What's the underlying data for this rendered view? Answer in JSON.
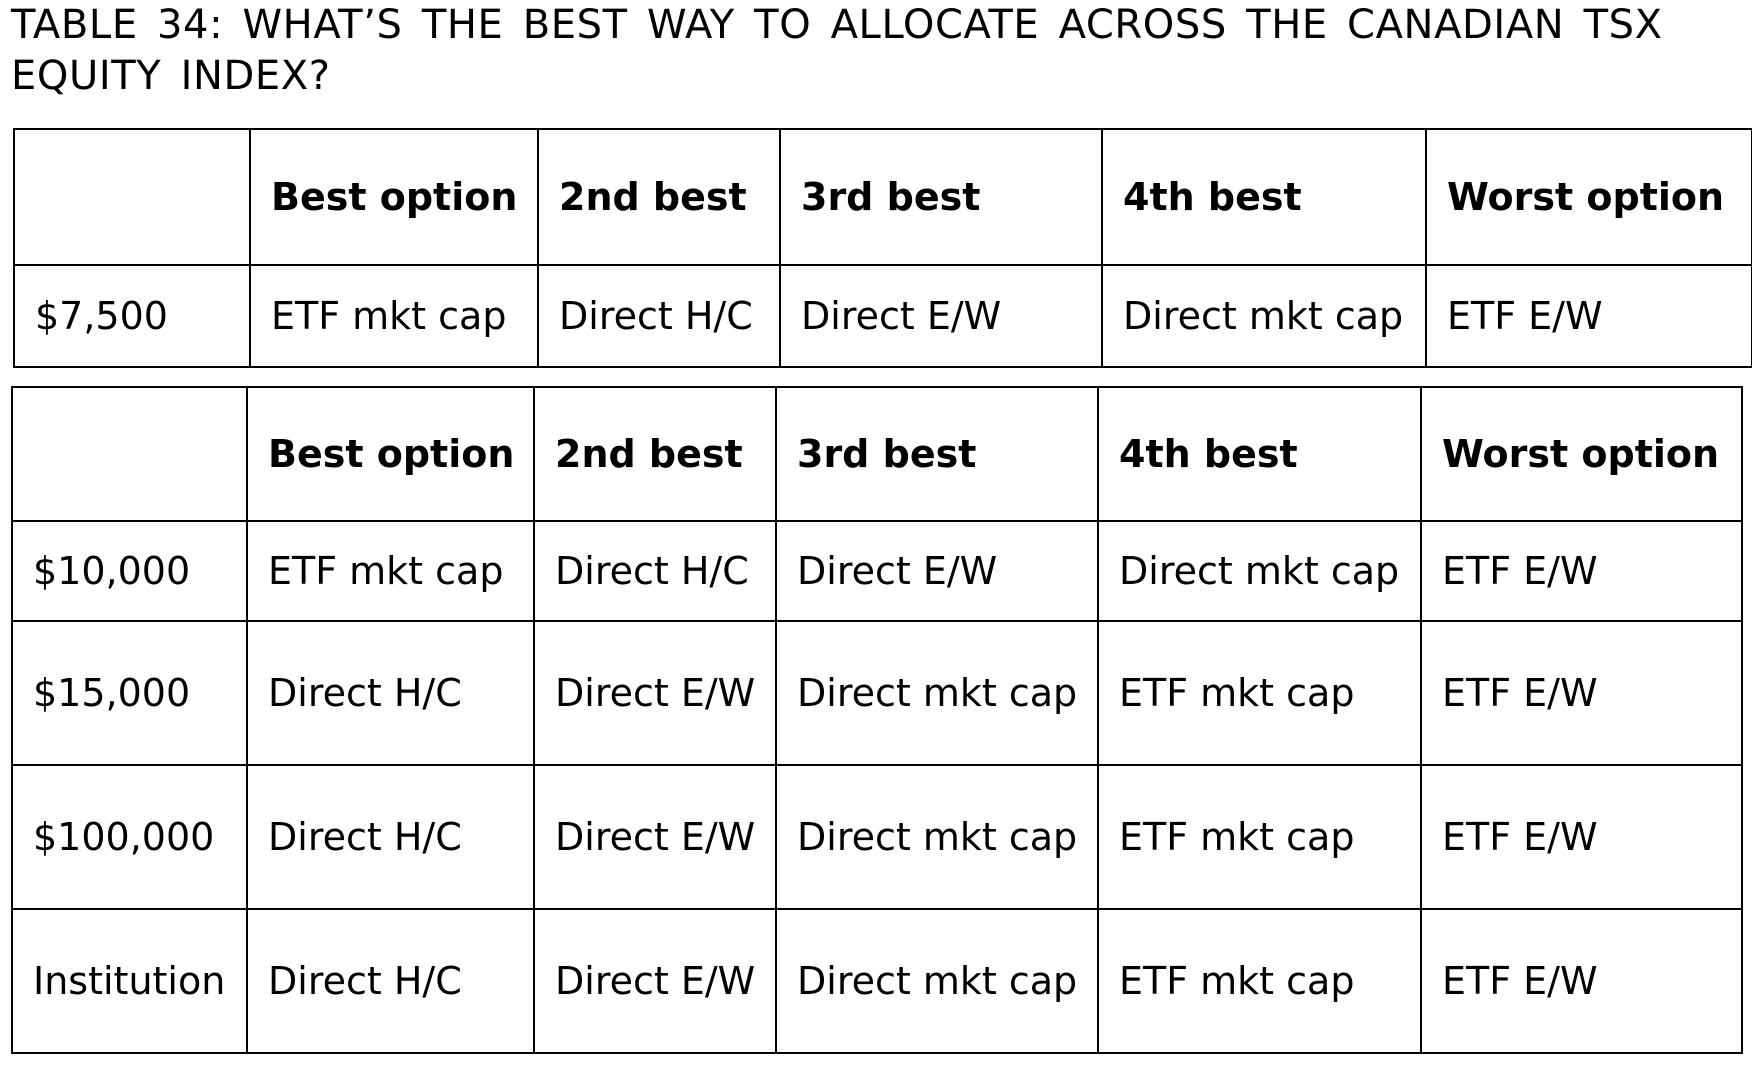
{
  "title": "TABLE 34: WHAT’S THE BEST WAY TO ALLOCATE ACROSS THE CANADIAN TSX EQUITY INDEX?",
  "table1": {
    "headers": [
      "",
      "Best option",
      "2nd best",
      "3rd best",
      "4th best",
      "Worst option"
    ],
    "rows": [
      [
        "$7,500",
        "ETF mkt cap",
        "Direct H/C",
        "Direct E/W",
        "Direct mkt cap",
        "ETF E/W"
      ]
    ]
  },
  "table2": {
    "headers": [
      "",
      "Best option",
      "2nd best",
      "3rd best",
      "4th best",
      "Worst option"
    ],
    "rows": [
      [
        "$10,000",
        "ETF mkt cap",
        "Direct H/C",
        "Direct E/W",
        "Direct mkt cap",
        "ETF E/W"
      ],
      [
        "$15,000",
        "Direct H/C",
        "Direct E/W",
        "Direct mkt cap",
        "ETF mkt cap",
        "ETF E/W"
      ],
      [
        "$100,000",
        "Direct H/C",
        "Direct E/W",
        "Direct mkt cap",
        "ETF mkt cap",
        "ETF E/W"
      ],
      [
        "Institution",
        "Direct H/C",
        "Direct E/W",
        "Direct mkt cap",
        "ETF mkt cap",
        "ETF E/W"
      ]
    ]
  }
}
